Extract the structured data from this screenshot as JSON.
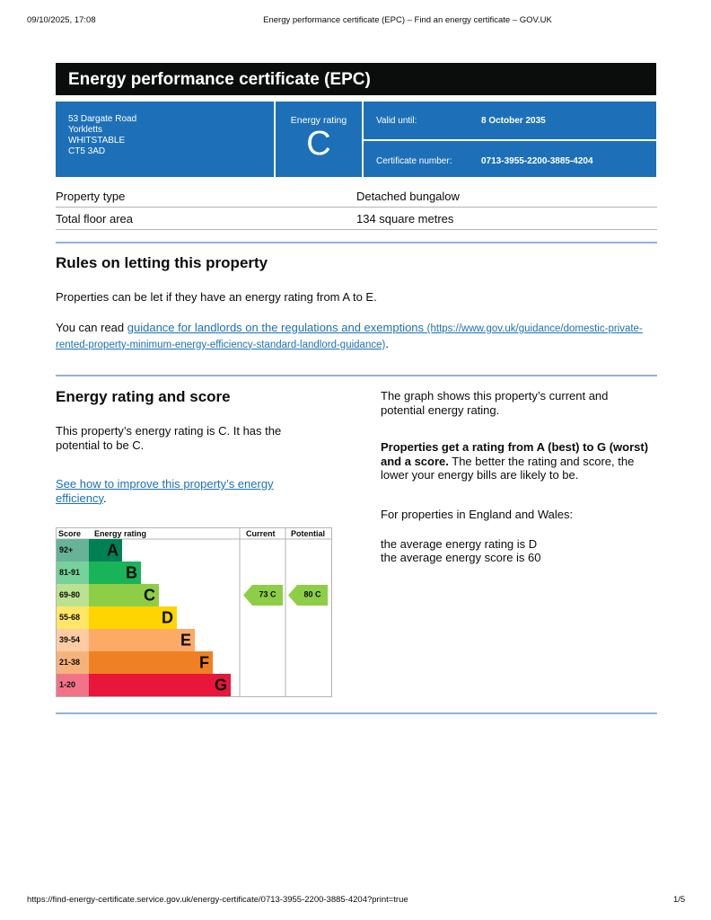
{
  "print_header": {
    "datetime": "09/10/2025, 17:08",
    "title": "Energy performance certificate (EPC) – Find an energy certificate – GOV.UK"
  },
  "header": {
    "title": "Energy performance certificate (EPC)"
  },
  "address": [
    "53 Dargate Road",
    "Yorkletts",
    "WHITSTABLE",
    "CT5 3AD"
  ],
  "rating_box": {
    "label": "Energy rating",
    "rating": "C"
  },
  "validity": {
    "label": "Valid until:",
    "value": "8 October 2035"
  },
  "certificate": {
    "label": "Certificate number:",
    "value": "0713-3955-2200-3885-4204"
  },
  "property_table": {
    "rows": [
      [
        "Property type",
        "Detached bungalow"
      ],
      [
        "Total floor area",
        "134 square metres"
      ]
    ]
  },
  "letting": {
    "heading": "Rules on letting this property",
    "para1": "Properties can be let if they have an energy rating from A to E.",
    "para2_prefix": "You can read ",
    "link_text": "guidance for landlords on the regulations and exemptions",
    "link_url": "(https://www.gov.uk/guidance/domestic-private-rented-property-minimum-energy-efficiency-standard-landlord-guidance)",
    "para2_suffix": "."
  },
  "rating_section": {
    "heading": "Energy rating and score",
    "para": "This property’s energy rating is C. It has the potential to be C.",
    "link_text": "See how to improve this property’s energy efficiency",
    "link_suffix": ".",
    "right_para1": "The graph shows this property’s current and potential energy rating.",
    "right_para2_bold": "Properties get a rating from A (best) to G (worst) and a score.",
    "right_para2_rest": " The better the rating and score, the lower your energy bills are likely to be.",
    "right_para3": "For properties in England and Wales:",
    "right_para4": "the average energy rating is D",
    "right_para5": "the average energy score is 60"
  },
  "graph": {
    "headers": [
      "Score",
      "Energy rating",
      "Current",
      "Potential"
    ],
    "bands": [
      {
        "score": "92+",
        "letter": "A"
      },
      {
        "score": "81-91",
        "letter": "B"
      },
      {
        "score": "69-80",
        "letter": "C"
      },
      {
        "score": "55-68",
        "letter": "D"
      },
      {
        "score": "39-54",
        "letter": "E"
      },
      {
        "score": "21-38",
        "letter": "F"
      },
      {
        "score": "1-20",
        "letter": "G"
      }
    ],
    "current": {
      "score": 73,
      "letter": "C"
    },
    "potential": {
      "score": 80,
      "letter": "C"
    }
  },
  "footer": {
    "url": "https://find-energy-certificate.service.gov.uk/energy-certificate/0713-3955-2200-3885-4204?print=true",
    "page": "1/5"
  }
}
